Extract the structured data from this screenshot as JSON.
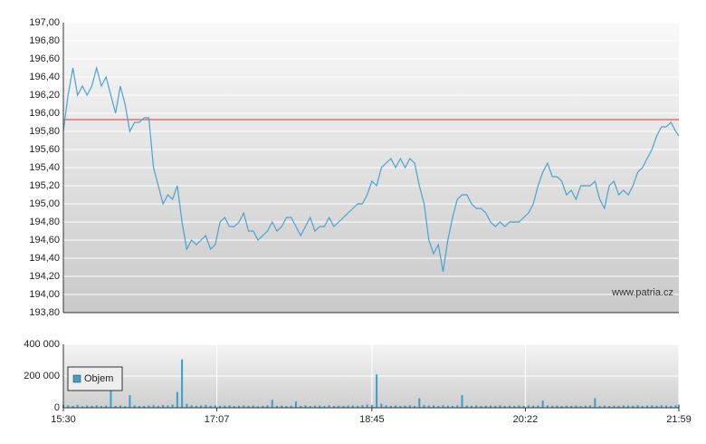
{
  "chart_data": [
    {
      "type": "line",
      "watermark": "www.patria.cz",
      "reference_line": 195.93,
      "reference_color": "#d9382f",
      "xlim": [
        "15:30",
        "21:59"
      ],
      "ylim": [
        193.8,
        197.0
      ],
      "yticks": [
        {
          "value": 193.8,
          "label": "193,80"
        },
        {
          "value": 194.0,
          "label": "194,00"
        },
        {
          "value": 194.2,
          "label": "194,20"
        },
        {
          "value": 194.4,
          "label": "194,40"
        },
        {
          "value": 194.6,
          "label": "194,60"
        },
        {
          "value": 194.8,
          "label": "194,80"
        },
        {
          "value": 195.0,
          "label": "195,00"
        },
        {
          "value": 195.2,
          "label": "195,20"
        },
        {
          "value": 195.4,
          "label": "195,40"
        },
        {
          "value": 195.6,
          "label": "195,60"
        },
        {
          "value": 195.8,
          "label": "195,80"
        },
        {
          "value": 196.0,
          "label": "196,00"
        },
        {
          "value": 196.2,
          "label": "196,20"
        },
        {
          "value": 196.4,
          "label": "196,40"
        },
        {
          "value": 196.6,
          "label": "196,60"
        },
        {
          "value": 196.8,
          "label": "196,80"
        },
        {
          "value": 197.0,
          "label": "197,00"
        }
      ],
      "grid": true,
      "x": [
        "15:30",
        "15:33",
        "15:36",
        "15:39",
        "15:42",
        "15:45",
        "15:48",
        "15:51",
        "15:54",
        "15:57",
        "16:00",
        "16:03",
        "16:06",
        "16:09",
        "16:12",
        "16:15",
        "16:18",
        "16:21",
        "16:24",
        "16:27",
        "16:30",
        "16:33",
        "16:36",
        "16:39",
        "16:42",
        "16:45",
        "16:48",
        "16:51",
        "16:54",
        "16:57",
        "17:00",
        "17:03",
        "17:06",
        "17:09",
        "17:12",
        "17:15",
        "17:18",
        "17:21",
        "17:24",
        "17:27",
        "17:30",
        "17:33",
        "17:36",
        "17:39",
        "17:42",
        "17:45",
        "17:48",
        "17:51",
        "17:54",
        "17:57",
        "18:00",
        "18:03",
        "18:06",
        "18:09",
        "18:12",
        "18:15",
        "18:18",
        "18:21",
        "18:24",
        "18:27",
        "18:30",
        "18:33",
        "18:36",
        "18:39",
        "18:42",
        "18:45",
        "18:48",
        "18:51",
        "18:54",
        "18:57",
        "19:00",
        "19:03",
        "19:06",
        "19:09",
        "19:12",
        "19:15",
        "19:18",
        "19:21",
        "19:24",
        "19:27",
        "19:30",
        "19:33",
        "19:36",
        "19:39",
        "19:42",
        "19:45",
        "19:48",
        "19:51",
        "19:54",
        "19:57",
        "20:00",
        "20:03",
        "20:06",
        "20:09",
        "20:12",
        "20:15",
        "20:18",
        "20:21",
        "20:24",
        "20:27",
        "20:30",
        "20:33",
        "20:36",
        "20:39",
        "20:42",
        "20:45",
        "20:48",
        "20:51",
        "20:54",
        "20:57",
        "21:00",
        "21:03",
        "21:06",
        "21:09",
        "21:12",
        "21:15",
        "21:18",
        "21:21",
        "21:24",
        "21:27",
        "21:30",
        "21:33",
        "21:36",
        "21:39",
        "21:42",
        "21:45",
        "21:48",
        "21:51",
        "21:54",
        "21:57",
        "21:59"
      ],
      "series": [
        {
          "color": "#4aa3cf",
          "values": [
            195.8,
            196.2,
            196.5,
            196.2,
            196.3,
            196.2,
            196.3,
            196.5,
            196.3,
            196.4,
            196.2,
            196.0,
            196.3,
            196.1,
            195.8,
            195.9,
            195.9,
            195.95,
            195.95,
            195.4,
            195.2,
            195.0,
            195.1,
            195.05,
            195.2,
            194.8,
            194.5,
            194.6,
            194.55,
            194.6,
            194.65,
            194.5,
            194.55,
            194.8,
            194.85,
            194.75,
            194.75,
            194.8,
            194.9,
            194.7,
            194.7,
            194.6,
            194.65,
            194.7,
            194.8,
            194.7,
            194.75,
            194.85,
            194.85,
            194.75,
            194.65,
            194.75,
            194.85,
            194.7,
            194.75,
            194.75,
            194.85,
            194.75,
            194.8,
            194.85,
            194.9,
            194.95,
            195.0,
            195.0,
            195.1,
            195.25,
            195.2,
            195.4,
            195.45,
            195.5,
            195.4,
            195.5,
            195.4,
            195.5,
            195.45,
            195.2,
            195.0,
            194.6,
            194.45,
            194.55,
            194.25,
            194.6,
            194.85,
            195.05,
            195.1,
            195.1,
            195.0,
            194.95,
            194.95,
            194.9,
            194.8,
            194.75,
            194.8,
            194.75,
            194.8,
            194.8,
            194.8,
            194.85,
            194.9,
            195.0,
            195.2,
            195.35,
            195.45,
            195.3,
            195.3,
            195.25,
            195.1,
            195.15,
            195.05,
            195.2,
            195.2,
            195.2,
            195.25,
            195.05,
            194.95,
            195.2,
            195.25,
            195.1,
            195.15,
            195.1,
            195.2,
            195.35,
            195.4,
            195.5,
            195.6,
            195.75,
            195.85,
            195.85,
            195.9,
            195.8,
            195.75
          ]
        }
      ]
    },
    {
      "type": "bar",
      "xlim": [
        "15:30",
        "21:59"
      ],
      "xticks": [
        "15:30",
        "17:07",
        "18:45",
        "20:22",
        "21:59"
      ],
      "ylim": [
        0,
        400000
      ],
      "yticks": [
        0,
        {
          "value": 200000,
          "label": "200 000"
        },
        {
          "value": 400000,
          "label": "400 000"
        }
      ],
      "grid": true,
      "legend": "top-left",
      "x": [
        "15:30",
        "15:33",
        "15:36",
        "15:39",
        "15:42",
        "15:45",
        "15:48",
        "15:51",
        "15:54",
        "15:57",
        "16:00",
        "16:03",
        "16:06",
        "16:09",
        "16:12",
        "16:15",
        "16:18",
        "16:21",
        "16:24",
        "16:27",
        "16:30",
        "16:33",
        "16:36",
        "16:39",
        "16:42",
        "16:45",
        "16:48",
        "16:51",
        "16:54",
        "16:57",
        "17:00",
        "17:03",
        "17:06",
        "17:09",
        "17:12",
        "17:15",
        "17:18",
        "17:21",
        "17:24",
        "17:27",
        "17:30",
        "17:33",
        "17:36",
        "17:39",
        "17:42",
        "17:45",
        "17:48",
        "17:51",
        "17:54",
        "17:57",
        "18:00",
        "18:03",
        "18:06",
        "18:09",
        "18:12",
        "18:15",
        "18:18",
        "18:21",
        "18:24",
        "18:27",
        "18:30",
        "18:33",
        "18:36",
        "18:39",
        "18:42",
        "18:45",
        "18:48",
        "18:51",
        "18:54",
        "18:57",
        "19:00",
        "19:03",
        "19:06",
        "19:09",
        "19:12",
        "19:15",
        "19:18",
        "19:21",
        "19:24",
        "19:27",
        "19:30",
        "19:33",
        "19:36",
        "19:39",
        "19:42",
        "19:45",
        "19:48",
        "19:51",
        "19:54",
        "19:57",
        "20:00",
        "20:03",
        "20:06",
        "20:09",
        "20:12",
        "20:15",
        "20:18",
        "20:21",
        "20:24",
        "20:27",
        "20:30",
        "20:33",
        "20:36",
        "20:39",
        "20:42",
        "20:45",
        "20:48",
        "20:51",
        "20:54",
        "20:57",
        "21:00",
        "21:03",
        "21:06",
        "21:09",
        "21:12",
        "21:15",
        "21:18",
        "21:21",
        "21:24",
        "21:27",
        "21:30",
        "21:33",
        "21:36",
        "21:39",
        "21:42",
        "21:45",
        "21:48",
        "21:51",
        "21:54",
        "21:57",
        "21:59"
      ],
      "series": [
        {
          "name": "Objem",
          "color": "#3a9fc9",
          "values": [
            20000,
            15000,
            12000,
            18000,
            10000,
            14000,
            12000,
            16000,
            11000,
            13000,
            120000,
            12000,
            14000,
            10000,
            80000,
            15000,
            12000,
            11000,
            14000,
            16000,
            12000,
            18000,
            15000,
            20000,
            100000,
            305000,
            25000,
            15000,
            12000,
            14000,
            18000,
            13000,
            15000,
            12000,
            14000,
            16000,
            11000,
            13000,
            15000,
            12000,
            14000,
            10000,
            13000,
            15000,
            50000,
            12000,
            14000,
            11000,
            13000,
            40000,
            12000,
            15000,
            11000,
            13000,
            14000,
            12000,
            16000,
            11000,
            13000,
            12000,
            14000,
            15000,
            12000,
            16000,
            20000,
            18000,
            210000,
            25000,
            15000,
            12000,
            14000,
            11000,
            13000,
            16000,
            12000,
            60000,
            18000,
            14000,
            15000,
            12000,
            16000,
            13000,
            12000,
            15000,
            80000,
            14000,
            12000,
            15000,
            11000,
            13000,
            14000,
            12000,
            15000,
            11000,
            13000,
            12000,
            14000,
            12000,
            15000,
            13000,
            14000,
            45000,
            15000,
            12000,
            14000,
            11000,
            13000,
            12000,
            14000,
            11000,
            13000,
            15000,
            60000,
            12000,
            14000,
            11000,
            13000,
            12000,
            15000,
            14000,
            13000,
            16000,
            12000,
            14000,
            15000,
            13000,
            16000,
            14000,
            12000,
            15000,
            20000
          ]
        }
      ]
    }
  ]
}
